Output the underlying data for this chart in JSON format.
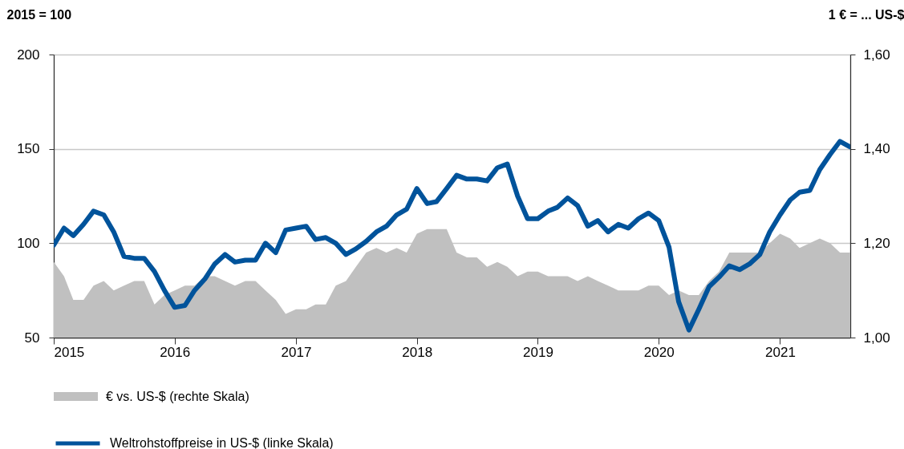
{
  "chart_data": {
    "type": "line",
    "ylabel": "2015 = 100",
    "y2label": "1 € = ... US-$",
    "x": [
      "2015-01",
      "2015-02",
      "2015-03",
      "2015-04",
      "2015-05",
      "2015-06",
      "2015-07",
      "2015-08",
      "2015-09",
      "2015-10",
      "2015-11",
      "2015-12",
      "2016-01",
      "2016-02",
      "2016-03",
      "2016-04",
      "2016-05",
      "2016-06",
      "2016-07",
      "2016-08",
      "2016-09",
      "2016-10",
      "2016-11",
      "2016-12",
      "2017-01",
      "2017-02",
      "2017-03",
      "2017-04",
      "2017-05",
      "2017-06",
      "2017-07",
      "2017-08",
      "2017-09",
      "2017-10",
      "2017-11",
      "2017-12",
      "2018-01",
      "2018-02",
      "2018-03",
      "2018-04",
      "2018-05",
      "2018-06",
      "2018-07",
      "2018-08",
      "2018-09",
      "2018-10",
      "2018-11",
      "2018-12",
      "2019-01",
      "2019-02",
      "2019-03",
      "2019-04",
      "2019-05",
      "2019-06",
      "2019-07",
      "2019-08",
      "2019-09",
      "2019-10",
      "2019-11",
      "2019-12",
      "2020-01",
      "2020-02",
      "2020-03",
      "2020-04",
      "2020-05",
      "2020-06",
      "2020-07",
      "2020-08",
      "2020-09",
      "2020-10",
      "2020-11",
      "2020-12",
      "2021-01",
      "2021-02",
      "2021-03",
      "2021-04",
      "2021-05",
      "2021-06",
      "2021-07",
      "2021-08"
    ],
    "series": [
      {
        "name": "Weltrohstoffpreise in US-$ (linke Skala)",
        "color": "#00539b",
        "values": [
          99,
          108,
          104,
          110,
          117,
          115,
          106,
          93,
          92,
          92,
          85,
          75,
          66,
          67,
          75,
          81,
          89,
          94,
          90,
          91,
          91,
          100,
          95,
          107,
          108,
          109,
          102,
          103,
          100,
          94,
          97,
          101,
          106,
          109,
          115,
          118,
          129,
          121,
          122,
          129,
          136,
          134,
          134,
          133,
          140,
          142,
          125,
          113,
          113,
          117,
          119,
          124,
          120,
          109,
          112,
          106,
          110,
          108,
          113,
          116,
          112,
          98,
          69,
          54,
          65,
          77,
          82,
          88,
          86,
          89,
          94,
          106,
          115,
          123,
          127,
          128,
          139,
          147,
          154,
          151
        ]
      },
      {
        "name": "€ vs. US-$ (rechte Skala)",
        "type": "area",
        "axis": "y2",
        "color": "#c0c0c0",
        "values": [
          1.16,
          1.13,
          1.08,
          1.08,
          1.11,
          1.12,
          1.1,
          1.11,
          1.12,
          1.12,
          1.07,
          1.09,
          1.1,
          1.11,
          1.11,
          1.13,
          1.13,
          1.12,
          1.11,
          1.12,
          1.12,
          1.1,
          1.08,
          1.05,
          1.06,
          1.06,
          1.07,
          1.07,
          1.11,
          1.12,
          1.15,
          1.18,
          1.19,
          1.18,
          1.19,
          1.18,
          1.22,
          1.23,
          1.23,
          1.23,
          1.18,
          1.17,
          1.17,
          1.15,
          1.16,
          1.15,
          1.13,
          1.14,
          1.14,
          1.13,
          1.13,
          1.13,
          1.12,
          1.13,
          1.12,
          1.11,
          1.1,
          1.1,
          1.1,
          1.11,
          1.11,
          1.09,
          1.1,
          1.09,
          1.09,
          1.12,
          1.14,
          1.18,
          1.18,
          1.18,
          1.18,
          1.2,
          1.22,
          1.21,
          1.19,
          1.2,
          1.21,
          1.2,
          1.18,
          1.18
        ]
      }
    ],
    "xlim": [
      "2015-01",
      "2021-08"
    ],
    "xticks": [
      "2015",
      "2016",
      "2017",
      "2018",
      "2019",
      "2020",
      "2021"
    ],
    "ylim": [
      50,
      200
    ],
    "yticks": [
      50,
      100,
      150,
      200
    ],
    "y2lim": [
      1.0,
      1.6
    ],
    "y2ticks": [
      {
        "value": 1.0,
        "label": "1,00"
      },
      {
        "value": 1.2,
        "label": "1,20"
      },
      {
        "value": 1.4,
        "label": "1,40"
      },
      {
        "value": 1.6,
        "label": "1,60"
      }
    ],
    "grid": "y",
    "legend": "bottom"
  }
}
